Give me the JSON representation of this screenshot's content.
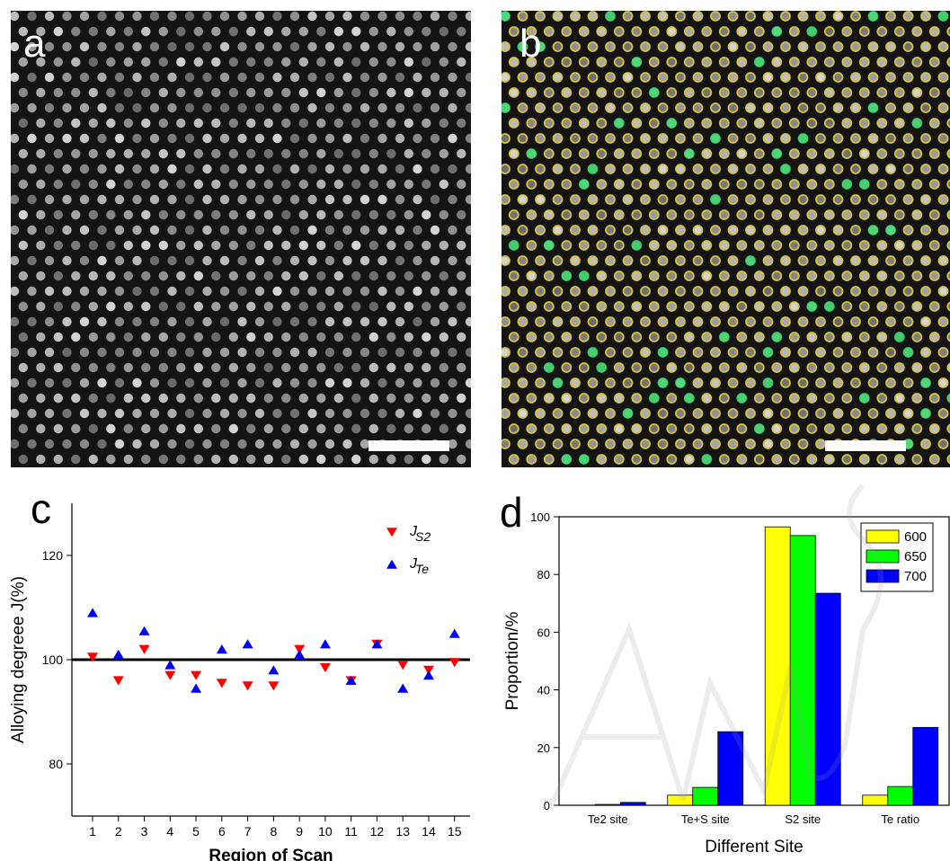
{
  "panels": {
    "a": {
      "label": "a"
    },
    "b": {
      "label": "b"
    },
    "c": {
      "label": "c"
    },
    "d": {
      "label": "d"
    }
  },
  "colors": {
    "js2": "#ff0000",
    "jte": "#0000ff",
    "bar600": "#ffff00",
    "bar650": "#00ff00",
    "bar700": "#0000ff",
    "atom_yellow": "#d8c43a",
    "atom_green": "#3cdc6e"
  },
  "chart_data": [
    {
      "panel": "c",
      "type": "scatter",
      "xlabel": "Region of Scan",
      "ylabel": "Alloying degreee J(%)",
      "xlim": [
        0.2,
        15.6
      ],
      "ylim": [
        70,
        130
      ],
      "xticks": [
        1,
        2,
        3,
        4,
        5,
        6,
        7,
        8,
        9,
        10,
        11,
        12,
        13,
        14,
        15
      ],
      "yticks": [
        80,
        100,
        120
      ],
      "reference_line": 100,
      "legend_position": "top-right",
      "series": [
        {
          "name": "J",
          "subscript": "S2",
          "marker": "triangle-down",
          "x": [
            1,
            2,
            3,
            4,
            5,
            6,
            7,
            8,
            9,
            10,
            11,
            12,
            13,
            14,
            15
          ],
          "y": [
            100.5,
            96,
            102,
            97,
            97,
            95.5,
            95,
            95,
            102,
            98.5,
            96,
            103,
            99,
            98,
            99.5
          ]
        },
        {
          "name": "J",
          "subscript": "Te",
          "marker": "triangle-up",
          "x": [
            1,
            2,
            3,
            4,
            5,
            6,
            7,
            8,
            9,
            10,
            11,
            12,
            13,
            14,
            15
          ],
          "y": [
            109,
            101,
            105.5,
            99,
            94.5,
            102,
            103,
            98,
            101,
            103,
            96,
            103,
            94.5,
            97,
            105
          ]
        }
      ]
    },
    {
      "panel": "d",
      "type": "bar",
      "xlabel": "Different Site",
      "ylabel": "Proportion/%",
      "ylim": [
        0,
        100
      ],
      "yticks": [
        0,
        20,
        40,
        60,
        80,
        100
      ],
      "legend_position": "top-right",
      "categories": [
        "Te2 site",
        "Te+S site",
        "S2 site",
        "Te ratio"
      ],
      "series": [
        {
          "name": "600",
          "values": [
            0,
            3.5,
            96.5,
            3.5
          ]
        },
        {
          "name": "650",
          "values": [
            0.3,
            6.2,
            93.5,
            6.5
          ]
        },
        {
          "name": "700",
          "values": [
            1,
            25.5,
            73.5,
            27
          ]
        }
      ]
    }
  ]
}
